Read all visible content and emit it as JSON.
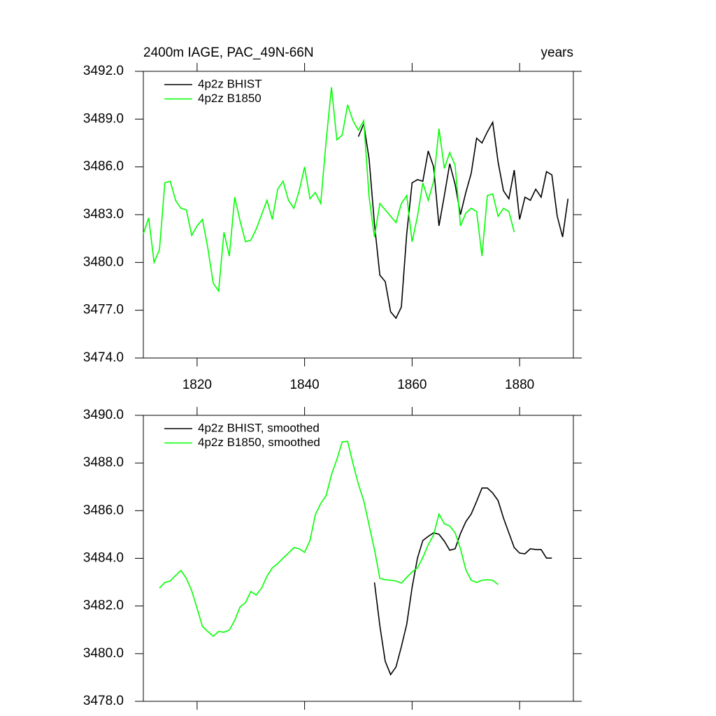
{
  "chart_data": [
    {
      "type": "line",
      "title": "2400m IAGE, PAC_49N-66N",
      "title_right": "years",
      "xlim": [
        1810,
        1890
      ],
      "xticks": [
        1820,
        1840,
        1860,
        1880
      ],
      "ylim": [
        3474,
        3492
      ],
      "yticks": [
        {
          "value": 3474,
          "label": "3474.0"
        },
        {
          "value": 3477,
          "label": "3477.0"
        },
        {
          "value": 3480,
          "label": "3480.0"
        },
        {
          "value": 3483,
          "label": "3483.0"
        },
        {
          "value": 3486,
          "label": "3486.0"
        },
        {
          "value": 3489,
          "label": "3489.0"
        },
        {
          "value": 3492,
          "label": "3492.0"
        }
      ],
      "series": [
        {
          "name": "4p2z BHIST",
          "color": "#000000",
          "x": [
            1850,
            1851,
            1852,
            1853,
            1854,
            1855,
            1856,
            1857,
            1858,
            1859,
            1860,
            1861,
            1862,
            1863,
            1864,
            1865,
            1866,
            1867,
            1868,
            1869,
            1870,
            1871,
            1872,
            1873,
            1874,
            1875,
            1876,
            1877,
            1878,
            1879,
            1880,
            1881,
            1882,
            1883,
            1884,
            1885,
            1886,
            1887,
            1888,
            1889
          ],
          "values": [
            3487.9,
            3488.7,
            3486.5,
            3482.4,
            3479.2,
            3478.8,
            3476.9,
            3476.5,
            3477.2,
            3481.8,
            3485.0,
            3485.2,
            3485.1,
            3487.0,
            3486.0,
            3482.3,
            3484.2,
            3486.2,
            3484.9,
            3483.0,
            3484.4,
            3485.6,
            3487.8,
            3487.5,
            3488.2,
            3488.8,
            3486.3,
            3484.5,
            3484.0,
            3485.8,
            3482.7,
            3484.1,
            3483.9,
            3484.6,
            3484.1,
            3485.7,
            3485.5,
            3482.9,
            3481.6,
            3484.0
          ]
        },
        {
          "name": "4p2z B1850",
          "color": "#00ff00",
          "x": [
            1810,
            1811,
            1812,
            1813,
            1814,
            1815,
            1816,
            1817,
            1818,
            1819,
            1820,
            1821,
            1822,
            1823,
            1824,
            1825,
            1826,
            1827,
            1828,
            1829,
            1830,
            1831,
            1832,
            1833,
            1834,
            1835,
            1836,
            1837,
            1838,
            1839,
            1840,
            1841,
            1842,
            1843,
            1844,
            1845,
            1846,
            1847,
            1848,
            1849,
            1850,
            1851,
            1852,
            1853,
            1854,
            1855,
            1856,
            1857,
            1858,
            1859,
            1860,
            1861,
            1862,
            1863,
            1864,
            1865,
            1866,
            1867,
            1868,
            1869,
            1870,
            1871,
            1872,
            1873,
            1874,
            1875,
            1876,
            1877,
            1878,
            1879
          ],
          "values": [
            3481.8,
            3482.8,
            3480.0,
            3480.8,
            3485.0,
            3485.1,
            3483.9,
            3483.4,
            3483.3,
            3481.7,
            3482.3,
            3482.7,
            3480.9,
            3478.7,
            3478.2,
            3481.9,
            3480.4,
            3484.1,
            3482.6,
            3481.3,
            3481.4,
            3482.1,
            3483.0,
            3483.9,
            3482.7,
            3484.6,
            3485.1,
            3483.9,
            3483.4,
            3484.5,
            3486.0,
            3484.0,
            3484.4,
            3483.7,
            3487.6,
            3491.0,
            3487.7,
            3488.0,
            3489.9,
            3488.9,
            3488.3,
            3488.9,
            3484.1,
            3481.6,
            3483.7,
            3483.3,
            3482.9,
            3482.5,
            3483.7,
            3484.2,
            3481.3,
            3482.9,
            3485.0,
            3483.9,
            3485.1,
            3488.4,
            3485.9,
            3486.9,
            3486.1,
            3482.3,
            3483.1,
            3483.4,
            3483.2,
            3480.4,
            3484.2,
            3484.3,
            3482.9,
            3483.4,
            3483.2,
            3481.9
          ]
        }
      ]
    },
    {
      "type": "line",
      "xlim": [
        1810,
        1890
      ],
      "xticks": [
        1820,
        1840,
        1860,
        1880
      ],
      "ylim": [
        3478,
        3490
      ],
      "yticks": [
        {
          "value": 3478,
          "label": "3478.0"
        },
        {
          "value": 3480,
          "label": "3480.0"
        },
        {
          "value": 3482,
          "label": "3482.0"
        },
        {
          "value": 3484,
          "label": "3484.0"
        },
        {
          "value": 3486,
          "label": "3486.0"
        },
        {
          "value": 3488,
          "label": "3488.0"
        },
        {
          "value": 3490,
          "label": "3490.0"
        }
      ],
      "series": [
        {
          "name": "4p2z BHIST, smoothed",
          "color": "#000000",
          "x": [
            1853,
            1854,
            1855,
            1856,
            1857,
            1858,
            1859,
            1860,
            1861,
            1862,
            1863,
            1864,
            1865,
            1866,
            1867,
            1868,
            1869,
            1870,
            1871,
            1872,
            1873,
            1874,
            1875,
            1876,
            1877,
            1878,
            1879,
            1880,
            1881,
            1882,
            1883,
            1884,
            1885,
            1886
          ],
          "values": [
            3482.99,
            3481.17,
            3479.68,
            3479.12,
            3479.44,
            3480.29,
            3481.23,
            3482.78,
            3484.01,
            3484.75,
            3484.92,
            3485.07,
            3485.01,
            3484.72,
            3484.34,
            3484.4,
            3485.04,
            3485.54,
            3485.86,
            3486.39,
            3486.95,
            3486.95,
            3486.74,
            3486.42,
            3485.69,
            3485.07,
            3484.45,
            3484.22,
            3484.19,
            3484.4,
            3484.37,
            3484.37,
            3484.01,
            3484.01
          ]
        },
        {
          "name": "4p2z B1850, smoothed",
          "color": "#00ff00",
          "x": [
            1813,
            1814,
            1815,
            1816,
            1817,
            1818,
            1819,
            1820,
            1821,
            1822,
            1823,
            1824,
            1825,
            1826,
            1827,
            1828,
            1829,
            1830,
            1831,
            1832,
            1833,
            1834,
            1835,
            1836,
            1837,
            1838,
            1839,
            1840,
            1841,
            1842,
            1843,
            1844,
            1845,
            1846,
            1847,
            1848,
            1849,
            1850,
            1851,
            1852,
            1853,
            1854,
            1855,
            1856,
            1857,
            1858,
            1859,
            1860,
            1861,
            1862,
            1863,
            1864,
            1865,
            1866,
            1867,
            1868,
            1869,
            1870,
            1871,
            1872,
            1873,
            1874,
            1875,
            1876
          ],
          "values": [
            3482.75,
            3482.99,
            3483.05,
            3483.28,
            3483.49,
            3483.16,
            3482.64,
            3481.9,
            3481.14,
            3480.93,
            3480.73,
            3480.93,
            3480.9,
            3480.99,
            3481.4,
            3481.96,
            3482.14,
            3482.61,
            3482.46,
            3482.75,
            3483.25,
            3483.6,
            3483.78,
            3484.01,
            3484.22,
            3484.45,
            3484.4,
            3484.25,
            3484.75,
            3485.83,
            3486.3,
            3486.63,
            3487.51,
            3488.15,
            3488.89,
            3488.91,
            3487.98,
            3487.12,
            3486.42,
            3485.39,
            3484.37,
            3483.16,
            3483.1,
            3483.08,
            3483.05,
            3482.96,
            3483.2,
            3483.43,
            3483.6,
            3484.04,
            3484.57,
            3484.98,
            3485.86,
            3485.45,
            3485.36,
            3485.07,
            3484.4,
            3483.52,
            3483.08,
            3482.99,
            3483.08,
            3483.1,
            3483.08,
            3482.9
          ]
        }
      ]
    }
  ]
}
